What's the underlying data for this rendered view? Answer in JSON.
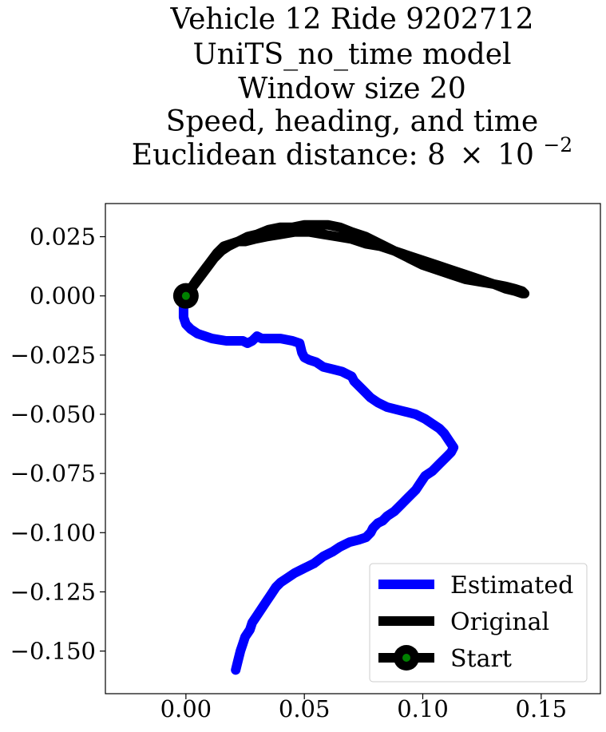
{
  "chart_data": {
    "type": "line",
    "title_lines": [
      "Vehicle 12 Ride 9202712",
      "UniTS_no_time model",
      "Window size 20",
      "Speed, heading, and time"
    ],
    "title_distance_prefix": "Euclidean distance: 8",
    "title_distance_times": "×",
    "title_distance_base": "10",
    "title_distance_exp": "−2",
    "xlabel": "",
    "ylabel": "",
    "xlim": [
      -0.034,
      0.175
    ],
    "ylim": [
      -0.168,
      0.039
    ],
    "x_ticks": [
      {
        "value": 0.0,
        "label": "0.00"
      },
      {
        "value": 0.05,
        "label": "0.05"
      },
      {
        "value": 0.1,
        "label": "0.10"
      },
      {
        "value": 0.15,
        "label": "0.15"
      }
    ],
    "y_ticks": [
      {
        "value": 0.025,
        "label": "0.025"
      },
      {
        "value": 0.0,
        "label": "0.000"
      },
      {
        "value": -0.025,
        "label": "−0.025"
      },
      {
        "value": -0.05,
        "label": "−0.050"
      },
      {
        "value": -0.075,
        "label": "−0.075"
      },
      {
        "value": -0.1,
        "label": "−0.100"
      },
      {
        "value": -0.125,
        "label": "−0.125"
      },
      {
        "value": -0.15,
        "label": "−0.150"
      }
    ],
    "grid": false,
    "legend_position": "bottom-right",
    "series": [
      {
        "name": "Estimated",
        "color": "#0000ff",
        "x": [
          0.0,
          -0.001,
          -0.001,
          0.0,
          0.002,
          0.005,
          0.008,
          0.011,
          0.014,
          0.017,
          0.02,
          0.024,
          0.026,
          0.028,
          0.03,
          0.032,
          0.035,
          0.04,
          0.045,
          0.048,
          0.049,
          0.05,
          0.052,
          0.055,
          0.058,
          0.062,
          0.066,
          0.068,
          0.07,
          0.071,
          0.073,
          0.075,
          0.078,
          0.081,
          0.085,
          0.089,
          0.093,
          0.097,
          0.101,
          0.104,
          0.107,
          0.109,
          0.111,
          0.113,
          0.112,
          0.11,
          0.107,
          0.104,
          0.101,
          0.099,
          0.097,
          0.094,
          0.091,
          0.088,
          0.085,
          0.083,
          0.081,
          0.079,
          0.078,
          0.076,
          0.073,
          0.069,
          0.065,
          0.062,
          0.058,
          0.054,
          0.05,
          0.046,
          0.043,
          0.04,
          0.038,
          0.036,
          0.034,
          0.032,
          0.03,
          0.028,
          0.027,
          0.025,
          0.024,
          0.023,
          0.022,
          0.021
        ],
        "y": [
          0.0,
          -0.004,
          -0.009,
          -0.012,
          -0.014,
          -0.016,
          -0.017,
          -0.018,
          -0.0185,
          -0.019,
          -0.019,
          -0.019,
          -0.02,
          -0.019,
          -0.017,
          -0.018,
          -0.018,
          -0.018,
          -0.019,
          -0.02,
          -0.024,
          -0.026,
          -0.027,
          -0.028,
          -0.03,
          -0.031,
          -0.032,
          -0.033,
          -0.034,
          -0.036,
          -0.038,
          -0.04,
          -0.043,
          -0.045,
          -0.047,
          -0.048,
          -0.049,
          -0.05,
          -0.052,
          -0.054,
          -0.056,
          -0.058,
          -0.061,
          -0.064,
          -0.066,
          -0.068,
          -0.071,
          -0.074,
          -0.076,
          -0.079,
          -0.082,
          -0.085,
          -0.088,
          -0.091,
          -0.093,
          -0.095,
          -0.096,
          -0.098,
          -0.1,
          -0.102,
          -0.103,
          -0.104,
          -0.106,
          -0.108,
          -0.11,
          -0.113,
          -0.115,
          -0.117,
          -0.119,
          -0.121,
          -0.123,
          -0.126,
          -0.129,
          -0.132,
          -0.135,
          -0.138,
          -0.141,
          -0.144,
          -0.147,
          -0.15,
          -0.154,
          -0.158
        ]
      },
      {
        "name": "Original",
        "color": "#000000",
        "x": [
          0.0,
          0.003,
          0.006,
          0.009,
          0.012,
          0.015,
          0.018,
          0.022,
          0.026,
          0.03,
          0.035,
          0.04,
          0.045,
          0.05,
          0.055,
          0.06,
          0.065,
          0.07,
          0.076,
          0.082,
          0.088,
          0.094,
          0.1,
          0.106,
          0.112,
          0.118,
          0.124,
          0.13,
          0.135,
          0.139,
          0.142,
          0.143,
          0.142,
          0.139,
          0.135,
          0.13,
          0.124,
          0.118,
          0.112,
          0.106,
          0.1,
          0.094,
          0.088,
          0.082,
          0.076,
          0.07,
          0.064,
          0.058,
          0.052,
          0.046,
          0.04,
          0.034,
          0.029,
          0.025,
          0.022,
          0.019,
          0.016,
          0.013,
          0.01,
          0.007,
          0.004,
          0.002,
          0.0
        ],
        "y": [
          0.0,
          0.004,
          0.008,
          0.012,
          0.016,
          0.019,
          0.021,
          0.023,
          0.025,
          0.026,
          0.028,
          0.029,
          0.029,
          0.03,
          0.03,
          0.03,
          0.029,
          0.027,
          0.025,
          0.022,
          0.019,
          0.016,
          0.013,
          0.011,
          0.009,
          0.007,
          0.006,
          0.005,
          0.004,
          0.003,
          0.002,
          0.001,
          0.001,
          0.002,
          0.003,
          0.005,
          0.007,
          0.009,
          0.011,
          0.013,
          0.015,
          0.017,
          0.019,
          0.021,
          0.022,
          0.024,
          0.025,
          0.026,
          0.027,
          0.027,
          0.026,
          0.025,
          0.024,
          0.023,
          0.023,
          0.022,
          0.021,
          0.018,
          0.014,
          0.01,
          0.006,
          0.003,
          0.0
        ]
      }
    ],
    "start_point": {
      "name": "Start",
      "x": 0.0,
      "y": 0.0,
      "marker_color": "#000000",
      "inner_color": "#008000"
    }
  }
}
